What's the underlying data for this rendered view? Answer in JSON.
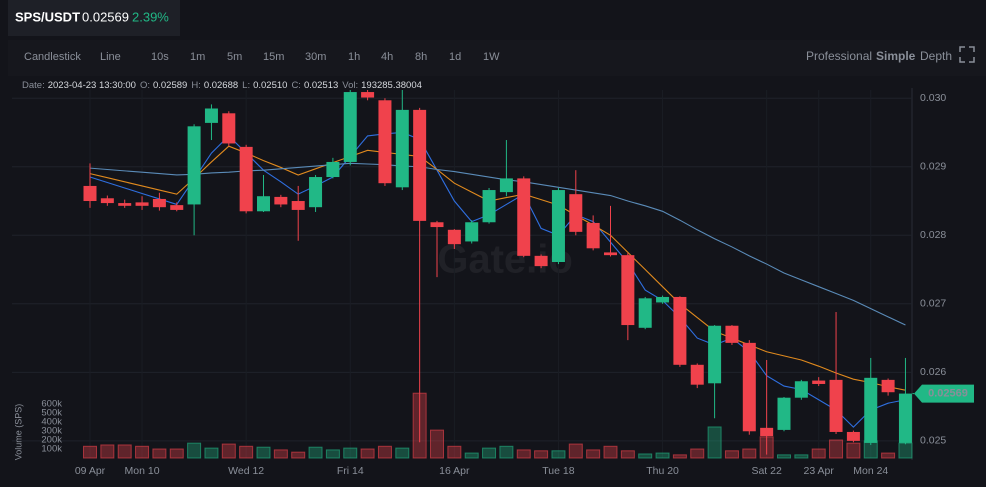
{
  "header": {
    "pair": "SPS/USDT",
    "price": "0.02569",
    "change": "2.39%"
  },
  "toolbar": {
    "chart_types": [
      "Candlestick",
      "Line"
    ],
    "active_chart_type": 0,
    "intervals": [
      "10s",
      "1m",
      "5m",
      "15m",
      "30m",
      "1h",
      "4h",
      "8h",
      "1d",
      "1W"
    ],
    "active_interval": 7,
    "views": [
      "Professional",
      "Simple",
      "Depth"
    ],
    "active_view": 1
  },
  "chart_data": {
    "type": "candlestick",
    "watermark": "Gate.io",
    "info": [
      {
        "label": "Date:",
        "value": "2023-04-23 13:30:00"
      },
      {
        "label": "O:",
        "value": "0.02589"
      },
      {
        "label": "H:",
        "value": "0.02688"
      },
      {
        "label": "L:",
        "value": "0.02510"
      },
      {
        "label": "C:",
        "value": "0.02513"
      },
      {
        "label": "Vol:",
        "value": "193285.38004"
      }
    ],
    "categories": [
      "09 Apr",
      null,
      null,
      "Mon 10",
      null,
      null,
      null,
      null,
      null,
      "Wed 12",
      null,
      null,
      null,
      null,
      null,
      "Fri 14",
      null,
      null,
      null,
      null,
      null,
      "16 Apr",
      null,
      null,
      null,
      null,
      null,
      "Tue 18",
      null,
      null,
      null,
      null,
      null,
      "Thu 20",
      null,
      null,
      null,
      null,
      null,
      "Sat 22",
      null,
      null,
      "23 Apr",
      null,
      null,
      "Mon 24",
      null,
      null
    ],
    "open": [
      0.02872,
      0.02854,
      0.02847,
      0.02848,
      0.02853,
      0.02844,
      0.02845,
      0.02964,
      0.02978,
      0.02929,
      0.02835,
      0.02856,
      0.0285,
      0.02841,
      0.02885,
      0.02907,
      0.03009,
      0.02997,
      0.0287,
      0.02983,
      0.02819,
      0.02808,
      0.02791,
      0.02819,
      0.02863,
      0.02883,
      0.0277,
      0.02761,
      0.0286,
      0.02818,
      0.02775,
      0.02771,
      0.02665,
      0.02702,
      0.0271,
      0.02611,
      0.02584,
      0.02668,
      0.02643,
      0.02519,
      0.02516,
      0.02563,
      0.02588,
      0.02589,
      0.02513,
      0.02497,
      0.02589,
      0.02497
    ],
    "high": [
      0.02905,
      0.02858,
      0.02852,
      0.02857,
      0.02862,
      0.02848,
      0.02962,
      0.02991,
      0.02981,
      0.02932,
      0.02888,
      0.02859,
      0.02872,
      0.02888,
      0.02913,
      0.03012,
      0.03012,
      0.03,
      0.03012,
      0.02986,
      0.02821,
      0.02809,
      0.02822,
      0.02869,
      0.02939,
      0.02886,
      0.02772,
      0.02869,
      0.02895,
      0.02829,
      0.02843,
      0.02774,
      0.0271,
      0.02712,
      0.02711,
      0.02613,
      0.02669,
      0.02669,
      0.02647,
      0.02618,
      0.02564,
      0.02589,
      0.02593,
      0.02688,
      0.02515,
      0.02621,
      0.02591,
      0.02621
    ],
    "low": [
      0.0284,
      0.02843,
      0.0284,
      0.02837,
      0.02836,
      0.02835,
      0.028,
      0.02939,
      0.0293,
      0.02832,
      0.02834,
      0.02841,
      0.02792,
      0.02834,
      0.02883,
      0.02902,
      0.02997,
      0.02872,
      0.02866,
      0.02498,
      0.02739,
      0.0278,
      0.02788,
      0.02817,
      0.02857,
      0.02768,
      0.02752,
      0.02758,
      0.028,
      0.02778,
      0.02769,
      0.02647,
      0.02663,
      0.027,
      0.02608,
      0.02577,
      0.02533,
      0.0264,
      0.02509,
      0.0248,
      0.02514,
      0.0256,
      0.0258,
      0.0251,
      0.02498,
      0.02494,
      0.02566,
      0.02495
    ],
    "close": [
      0.0285,
      0.02847,
      0.02843,
      0.02843,
      0.02841,
      0.02837,
      0.02959,
      0.02985,
      0.02934,
      0.02835,
      0.02857,
      0.02845,
      0.02837,
      0.02885,
      0.02907,
      0.03009,
      0.03001,
      0.02876,
      0.02983,
      0.02821,
      0.02812,
      0.02787,
      0.02819,
      0.02866,
      0.02883,
      0.0277,
      0.02755,
      0.02866,
      0.02805,
      0.02781,
      0.02771,
      0.02669,
      0.02708,
      0.0271,
      0.02611,
      0.02582,
      0.02668,
      0.02643,
      0.02514,
      0.02507,
      0.02563,
      0.02587,
      0.02583,
      0.02513,
      0.025,
      0.02592,
      0.02571,
      0.02569
    ],
    "volume": [
      130000,
      145000,
      145000,
      130000,
      100000,
      100000,
      165000,
      110000,
      155000,
      130000,
      120000,
      90000,
      65000,
      120000,
      90000,
      110000,
      100000,
      130000,
      110000,
      720000,
      310000,
      130000,
      55000,
      110000,
      130000,
      90000,
      80000,
      80000,
      155000,
      90000,
      130000,
      80000,
      45000,
      55000,
      35000,
      100000,
      345000,
      80000,
      100000,
      235000,
      35000,
      35000,
      100000,
      200000,
      165000,
      190000,
      55000,
      165000
    ],
    "up_color": "#21b886",
    "down_color": "#f0424c",
    "lines": [
      {
        "color": "#2f6fe0",
        "values": [
          0.02885,
          0.02877,
          0.02869,
          0.02861,
          0.02853,
          0.02845,
          0.02882,
          0.0292,
          0.02945,
          0.0292,
          0.02895,
          0.02878,
          0.0286,
          0.02872,
          0.02885,
          0.02915,
          0.02945,
          0.02948,
          0.0295,
          0.0294,
          0.02895,
          0.0285,
          0.0282,
          0.0283,
          0.02845,
          0.0286,
          0.0281,
          0.028,
          0.0283,
          0.0282,
          0.0279,
          0.0276,
          0.0272,
          0.02705,
          0.0268,
          0.0265,
          0.0264,
          0.0265,
          0.0263,
          0.02595,
          0.0258,
          0.02575,
          0.0256,
          0.02545,
          0.0252,
          0.02545,
          0.02555,
          0.0256
        ]
      },
      {
        "color": "#e08a1e",
        "values": [
          0.0289,
          0.02884,
          0.02878,
          0.02872,
          0.02866,
          0.0286,
          0.02883,
          0.02907,
          0.0293,
          0.0292,
          0.02909,
          0.02899,
          0.02888,
          0.02897,
          0.02906,
          0.02915,
          0.02924,
          0.02921,
          0.02918,
          0.02915,
          0.02896,
          0.02876,
          0.02863,
          0.0285,
          0.02855,
          0.0286,
          0.02852,
          0.02844,
          0.02829,
          0.02815,
          0.028,
          0.02775,
          0.0275,
          0.02725,
          0.027,
          0.0268,
          0.0266,
          0.0265,
          0.0264,
          0.0263,
          0.02624,
          0.02618,
          0.02609,
          0.02599,
          0.0259,
          0.02585,
          0.02579,
          0.02574
        ]
      },
      {
        "color": "#5a8bb8",
        "values": [
          0.02898,
          0.02896,
          0.02894,
          0.02892,
          0.0289,
          0.02888,
          0.02889,
          0.02891,
          0.02892,
          0.02894,
          0.02895,
          0.02897,
          0.02899,
          0.02901,
          0.02903,
          0.02905,
          0.02904,
          0.02903,
          0.02901,
          0.029,
          0.02896,
          0.02893,
          0.02889,
          0.02885,
          0.02881,
          0.02878,
          0.02874,
          0.0287,
          0.02866,
          0.02862,
          0.02858,
          0.0285,
          0.02843,
          0.02835,
          0.02822,
          0.02808,
          0.02795,
          0.02783,
          0.0277,
          0.02758,
          0.02745,
          0.02735,
          0.02725,
          0.02715,
          0.02705,
          0.02693,
          0.02681,
          0.02669
        ]
      }
    ],
    "ylim": [
      0.02475,
      0.03012
    ],
    "yticks": [
      {
        "value": 0.03,
        "label": "0.030"
      },
      0.029,
      0.028,
      0.027,
      0.026,
      0.025
    ],
    "volume_label": "Volume (SPS)",
    "volume_ylim": [
      0,
      600000
    ],
    "volume_ticks": [
      {
        "value": 100000,
        "label": "100k"
      },
      {
        "value": 200000,
        "label": "200k"
      },
      {
        "value": 300000,
        "label": "300k"
      },
      {
        "value": 400000,
        "label": "400k"
      },
      {
        "value": 500000,
        "label": "500k"
      },
      {
        "value": 600000,
        "label": "600k"
      }
    ],
    "grid": true
  }
}
